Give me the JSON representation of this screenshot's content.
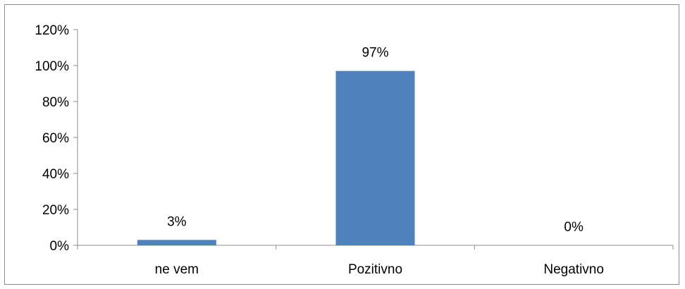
{
  "chart_data": {
    "type": "bar",
    "title": "",
    "xlabel": "",
    "ylabel": "",
    "categories": [
      "ne vem",
      "Pozitivno",
      "Negativno"
    ],
    "values": [
      0.03,
      0.97,
      0.0
    ],
    "data_labels": [
      "3%",
      "97%",
      "0%"
    ],
    "ylim": [
      0,
      1.2
    ],
    "yticks": [
      0,
      0.2,
      0.4,
      0.6,
      0.8,
      1.0,
      1.2
    ],
    "ytick_labels": [
      "0%",
      "20%",
      "40%",
      "60%",
      "80%",
      "100%",
      "120%"
    ],
    "bar_color": "#4f81bd",
    "grid": false,
    "legend": "none"
  }
}
